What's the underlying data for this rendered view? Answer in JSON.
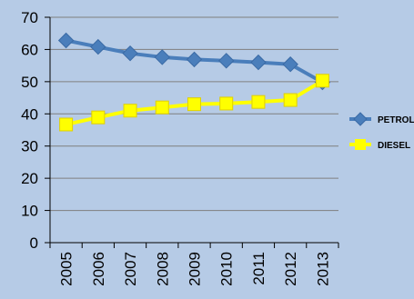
{
  "chart_data": {
    "type": "line",
    "title": "",
    "xlabel": "",
    "ylabel": "",
    "categories": [
      "2005",
      "2006",
      "2007",
      "2008",
      "2009",
      "2010",
      "2011",
      "2012",
      "2013"
    ],
    "ylim": [
      0,
      70
    ],
    "yticks": [
      0,
      10,
      20,
      30,
      40,
      50,
      60,
      70
    ],
    "grid": true,
    "legend_position": "right",
    "series": [
      {
        "name": "PETROL",
        "color": "#4a7ebb",
        "marker": "diamond",
        "values": [
          62.8,
          60.8,
          58.8,
          57.6,
          56.9,
          56.5,
          56.0,
          55.4,
          49.8
        ]
      },
      {
        "name": "DIESEL",
        "color": "#ffff00",
        "marker": "square",
        "values": [
          36.7,
          38.9,
          41.0,
          42.0,
          43.0,
          43.2,
          43.7,
          44.3,
          50.3
        ]
      }
    ]
  }
}
